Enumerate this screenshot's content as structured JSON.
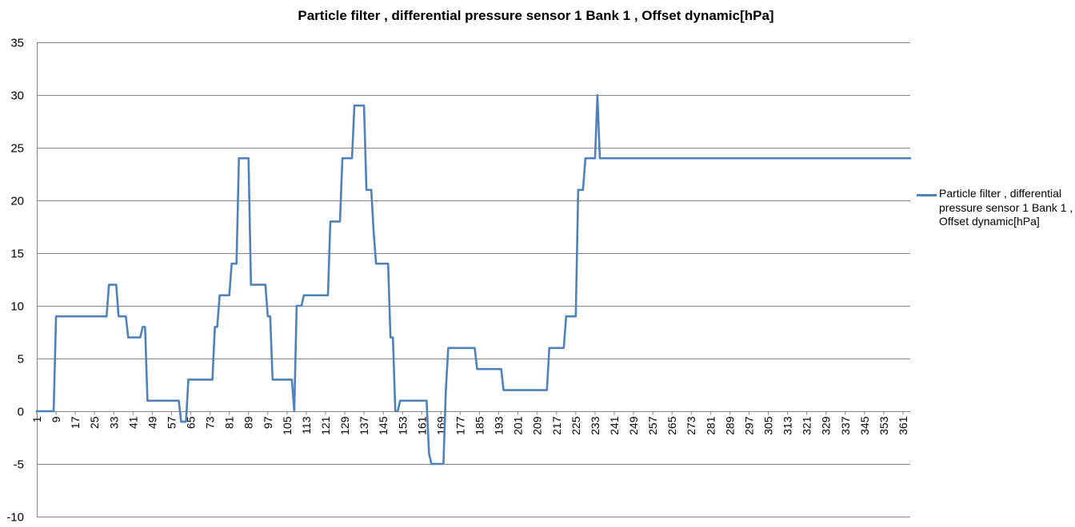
{
  "chart_data": {
    "type": "line",
    "title": "Particle filter , differential pressure sensor 1 Bank 1 , Offset dynamic[hPa]",
    "xlabel": "",
    "ylabel": "",
    "ylim": [
      -10,
      35
    ],
    "yticks": [
      -10,
      -5,
      0,
      5,
      10,
      15,
      20,
      25,
      30,
      35
    ],
    "xlim": [
      1,
      364
    ],
    "xtick_labels": [
      1,
      9,
      17,
      25,
      33,
      41,
      49,
      57,
      65,
      73,
      81,
      89,
      97,
      105,
      113,
      121,
      129,
      137,
      145,
      153,
      161,
      169,
      177,
      185,
      193,
      201,
      209,
      217,
      225,
      233,
      241,
      249,
      257,
      265,
      273,
      281,
      289,
      297,
      305,
      313,
      321,
      329,
      337,
      345,
      353,
      361
    ],
    "grid": "horizontal",
    "legend_position": "right",
    "colors": {
      "series": "#4f81bd",
      "grid": "#868686",
      "axis": "#868686",
      "text": "#000000"
    },
    "series": [
      {
        "name": "Particle filter , differential pressure sensor 1 Bank 1 , Offset dynamic[hPa]",
        "points": [
          [
            1,
            0
          ],
          [
            8,
            0
          ],
          [
            9,
            9
          ],
          [
            30,
            9
          ],
          [
            31,
            12
          ],
          [
            34,
            12
          ],
          [
            35,
            9
          ],
          [
            38,
            9
          ],
          [
            39,
            7
          ],
          [
            44,
            7
          ],
          [
            45,
            8
          ],
          [
            46,
            8
          ],
          [
            47,
            1
          ],
          [
            60,
            1
          ],
          [
            61,
            -1
          ],
          [
            63,
            -1
          ],
          [
            64,
            3
          ],
          [
            74,
            3
          ],
          [
            75,
            8
          ],
          [
            76,
            8
          ],
          [
            77,
            11
          ],
          [
            81,
            11
          ],
          [
            82,
            14
          ],
          [
            84,
            14
          ],
          [
            85,
            24
          ],
          [
            89,
            24
          ],
          [
            90,
            12
          ],
          [
            96,
            12
          ],
          [
            97,
            9
          ],
          [
            98,
            9
          ],
          [
            99,
            3
          ],
          [
            107,
            3
          ],
          [
            108,
            0
          ],
          [
            109,
            10
          ],
          [
            111,
            10
          ],
          [
            112,
            11
          ],
          [
            122,
            11
          ],
          [
            123,
            18
          ],
          [
            127,
            18
          ],
          [
            128,
            24
          ],
          [
            132,
            24
          ],
          [
            133,
            29
          ],
          [
            137,
            29
          ],
          [
            138,
            21
          ],
          [
            140,
            21
          ],
          [
            141,
            17
          ],
          [
            142,
            14
          ],
          [
            147,
            14
          ],
          [
            148,
            7
          ],
          [
            149,
            7
          ],
          [
            150,
            0
          ],
          [
            151,
            0
          ],
          [
            152,
            1
          ],
          [
            163,
            1
          ],
          [
            164,
            -4
          ],
          [
            165,
            -5
          ],
          [
            170,
            -5
          ],
          [
            171,
            2
          ],
          [
            172,
            6
          ],
          [
            183,
            6
          ],
          [
            184,
            4
          ],
          [
            194,
            4
          ],
          [
            195,
            2
          ],
          [
            213,
            2
          ],
          [
            214,
            6
          ],
          [
            220,
            6
          ],
          [
            221,
            9
          ],
          [
            225,
            9
          ],
          [
            226,
            21
          ],
          [
            228,
            21
          ],
          [
            229,
            24
          ],
          [
            233,
            24
          ],
          [
            234,
            30
          ],
          [
            235,
            24
          ],
          [
            364,
            24
          ]
        ]
      }
    ]
  }
}
